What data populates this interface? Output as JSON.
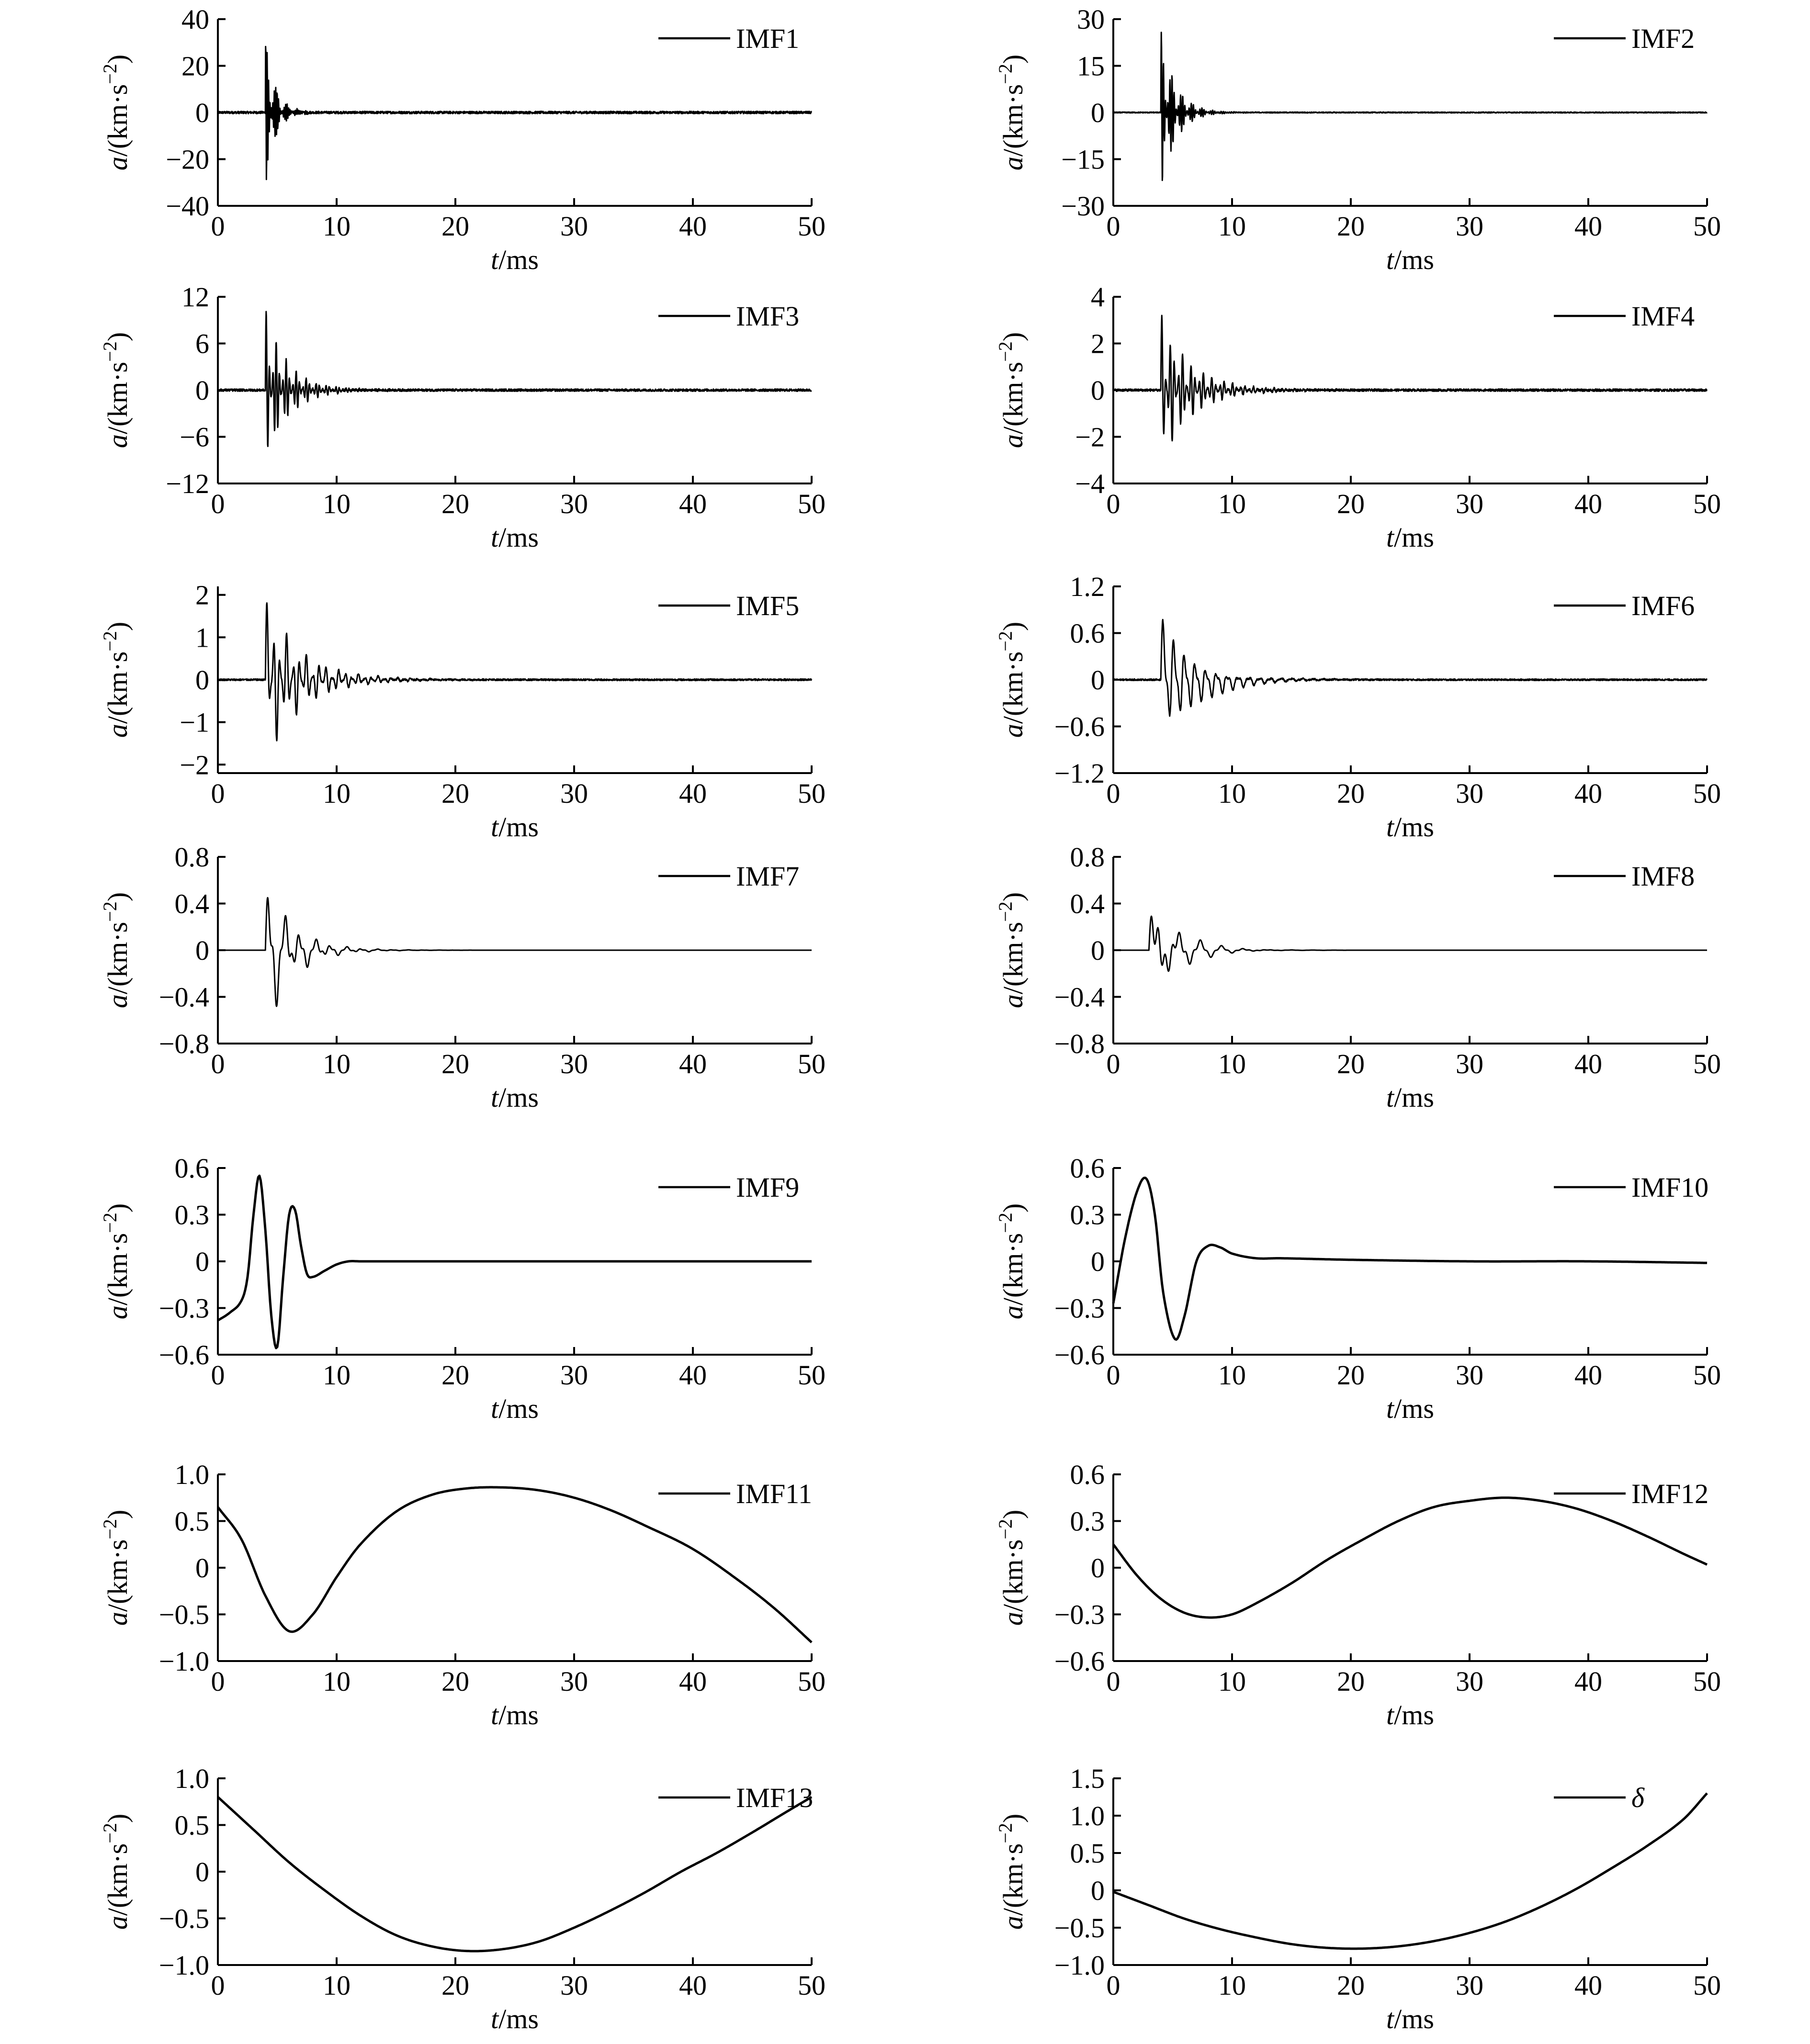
{
  "chart_data": [
    {
      "type": "line",
      "legend": "IMF1",
      "xlabel_italic": "t",
      "xlabel_unit": "/ms",
      "ylabel_italic": "a",
      "ylabel_unit": "/(km·s",
      "ylabel_sup": "−2",
      "ylabel_close": ")",
      "xlim": [
        0,
        50
      ],
      "ylim": [
        -40,
        40
      ],
      "xticks": [
        "0",
        "10",
        "20",
        "30",
        "40",
        "50"
      ],
      "yticks": [
        "−40",
        "−20",
        "0",
        "20",
        "40"
      ],
      "ytick_values": [
        -40,
        -20,
        0,
        20,
        40
      ],
      "signal": {
        "kind": "burst",
        "t0": 4.0,
        "amp": 34,
        "decay": 0.8,
        "period": 0.12,
        "noise": 0.5
      }
    },
    {
      "type": "line",
      "legend": "IMF2",
      "xlabel_italic": "t",
      "xlabel_unit": "/ms",
      "ylabel_italic": "a",
      "ylabel_unit": "/(km·s",
      "ylabel_sup": "−2",
      "ylabel_close": ")",
      "xlim": [
        0,
        50
      ],
      "ylim": [
        -30,
        30
      ],
      "xticks": [
        "0",
        "10",
        "20",
        "30",
        "40",
        "50"
      ],
      "yticks": [
        "−30",
        "−15",
        "0",
        "15",
        "30"
      ],
      "ytick_values": [
        -30,
        -15,
        0,
        15,
        30
      ],
      "signal": {
        "kind": "burst",
        "t0": 4.0,
        "amp": 27,
        "decay": 1.2,
        "period": 0.18,
        "noise": 0.15
      }
    },
    {
      "type": "line",
      "legend": "IMF3",
      "xlabel_italic": "t",
      "xlabel_unit": "/ms",
      "ylabel_italic": "a",
      "ylabel_unit": "/(km·s",
      "ylabel_sup": "−2",
      "ylabel_close": ")",
      "xlim": [
        0,
        50
      ],
      "ylim": [
        -12,
        12
      ],
      "xticks": [
        "0",
        "10",
        "20",
        "30",
        "40",
        "50"
      ],
      "yticks": [
        "−12",
        "−6",
        "0",
        "6",
        "12"
      ],
      "ytick_values": [
        -12,
        -6,
        0,
        6,
        12
      ],
      "signal": {
        "kind": "burst",
        "t0": 4.0,
        "amp": 10.5,
        "decay": 1.8,
        "period": 0.28,
        "noise": 0.15
      }
    },
    {
      "type": "line",
      "legend": "IMF4",
      "xlabel_italic": "t",
      "xlabel_unit": "/ms",
      "ylabel_italic": "a",
      "ylabel_unit": "/(km·s",
      "ylabel_sup": "−2",
      "ylabel_close": ")",
      "xlim": [
        0,
        50
      ],
      "ylim": [
        -4,
        4
      ],
      "xticks": [
        "0",
        "10",
        "20",
        "30",
        "40",
        "50"
      ],
      "yticks": [
        "−4",
        "−2",
        "0",
        "2",
        "4"
      ],
      "ytick_values": [
        -4,
        -2,
        0,
        2,
        4
      ],
      "signal": {
        "kind": "burst",
        "t0": 4.0,
        "amp": 3.3,
        "decay": 2.5,
        "period": 0.35,
        "noise": 0.05
      }
    },
    {
      "type": "line",
      "legend": "IMF5",
      "xlabel_italic": "t",
      "xlabel_unit": "/ms",
      "ylabel_italic": "a",
      "ylabel_unit": "/(km·s",
      "ylabel_sup": "−2",
      "ylabel_close": ")",
      "xlim": [
        0,
        50
      ],
      "ylim": [
        -2.2,
        2.2
      ],
      "xticks": [
        "0",
        "10",
        "20",
        "30",
        "40",
        "50"
      ],
      "yticks": [
        "−2",
        "−1",
        "0",
        "1",
        "2"
      ],
      "ytick_values": [
        -2,
        -1,
        0,
        1,
        2
      ],
      "signal": {
        "kind": "burst",
        "t0": 4.0,
        "amp": 2.0,
        "decay": 3.0,
        "period": 0.55,
        "noise": 0.02
      }
    },
    {
      "type": "line",
      "legend": "IMF6",
      "xlabel_italic": "t",
      "xlabel_unit": "/ms",
      "ylabel_italic": "a",
      "ylabel_unit": "/(km·s",
      "ylabel_sup": "−2",
      "ylabel_close": ")",
      "xlim": [
        0,
        50
      ],
      "ylim": [
        -1.2,
        1.2
      ],
      "xticks": [
        "0",
        "10",
        "20",
        "30",
        "40",
        "50"
      ],
      "yticks": [
        "−1.2",
        "−0.6",
        "0",
        "0.6",
        "1.2"
      ],
      "ytick_values": [
        -1.2,
        -0.6,
        0,
        0.6,
        1.2
      ],
      "signal": {
        "kind": "burst",
        "t0": 4.0,
        "amp": 1.0,
        "decay": 3.0,
        "period": 0.9,
        "noise": 0.01
      }
    },
    {
      "type": "line",
      "legend": "IMF7",
      "xlabel_italic": "t",
      "xlabel_unit": "/ms",
      "ylabel_italic": "a",
      "ylabel_unit": "/(km·s",
      "ylabel_sup": "−2",
      "ylabel_close": ")",
      "xlim": [
        0,
        50
      ],
      "ylim": [
        -0.8,
        0.8
      ],
      "xticks": [
        "0",
        "10",
        "20",
        "30",
        "40",
        "50"
      ],
      "yticks": [
        "−0.8",
        "−0.4",
        "0",
        "0.4",
        "0.8"
      ],
      "ytick_values": [
        -0.8,
        -0.4,
        0,
        0.4,
        0.8
      ],
      "signal": {
        "kind": "burst",
        "t0": 4.0,
        "amp": 0.75,
        "decay": 2.2,
        "period": 1.3,
        "noise": 0.0
      }
    },
    {
      "type": "line",
      "legend": "IMF8",
      "xlabel_italic": "t",
      "xlabel_unit": "/ms",
      "ylabel_italic": "a",
      "ylabel_unit": "/(km·s",
      "ylabel_sup": "−2",
      "ylabel_close": ")",
      "xlim": [
        0,
        50
      ],
      "ylim": [
        -0.8,
        0.8
      ],
      "xticks": [
        "0",
        "10",
        "20",
        "30",
        "40",
        "50"
      ],
      "yticks": [
        "−0.8",
        "−0.4",
        "0",
        "0.4",
        "0.8"
      ],
      "ytick_values": [
        -0.8,
        -0.4,
        0,
        0.4,
        0.8
      ],
      "signal": {
        "kind": "burst",
        "t0": 3.0,
        "amp": 0.65,
        "decay": 2.2,
        "period": 1.9,
        "noise": 0.0
      }
    },
    {
      "type": "line",
      "legend": "IMF9",
      "xlabel_italic": "t",
      "xlabel_unit": "/ms",
      "ylabel_italic": "a",
      "ylabel_unit": "/(km·s",
      "ylabel_sup": "−2",
      "ylabel_close": ")",
      "xlim": [
        0,
        50
      ],
      "ylim": [
        -0.6,
        0.6
      ],
      "xticks": [
        "0",
        "10",
        "20",
        "30",
        "40",
        "50"
      ],
      "yticks": [
        "−0.6",
        "−0.3",
        "0",
        "0.3",
        "0.6"
      ],
      "ytick_values": [
        -0.6,
        -0.3,
        0,
        0.3,
        0.6
      ],
      "signal": {
        "kind": "points",
        "x": [
          0,
          1,
          2,
          2.5,
          3,
          3.5,
          4,
          4.5,
          5,
          5.5,
          6,
          6.5,
          7,
          7.5,
          8,
          9,
          10,
          11,
          12,
          50
        ],
        "y": [
          -0.38,
          -0.33,
          -0.25,
          -0.1,
          0.3,
          0.55,
          0.2,
          -0.35,
          -0.55,
          -0.1,
          0.3,
          0.33,
          0.1,
          -0.08,
          -0.1,
          -0.06,
          -0.02,
          0.0,
          0.0,
          0.0
        ]
      }
    },
    {
      "type": "line",
      "legend": "IMF10",
      "xlabel_italic": "t",
      "xlabel_unit": "/ms",
      "ylabel_italic": "a",
      "ylabel_unit": "/(km·s",
      "ylabel_sup": "−2",
      "ylabel_close": ")",
      "xlim": [
        0,
        50
      ],
      "ylim": [
        -0.6,
        0.6
      ],
      "xticks": [
        "0",
        "10",
        "20",
        "30",
        "40",
        "50"
      ],
      "yticks": [
        "−0.6",
        "−0.3",
        "0",
        "0.3",
        "0.6"
      ],
      "ytick_values": [
        -0.6,
        -0.3,
        0,
        0.3,
        0.6
      ],
      "signal": {
        "kind": "points",
        "x": [
          0,
          1,
          2,
          2.8,
          3.5,
          4.2,
          5.2,
          6,
          7,
          8,
          9,
          10,
          12,
          14,
          20,
          30,
          40,
          50
        ],
        "y": [
          -0.27,
          0.15,
          0.45,
          0.53,
          0.3,
          -0.2,
          -0.5,
          -0.35,
          0.0,
          0.1,
          0.09,
          0.05,
          0.02,
          0.02,
          0.01,
          0.0,
          0.0,
          -0.01
        ]
      }
    },
    {
      "type": "line",
      "legend": "IMF11",
      "xlabel_italic": "t",
      "xlabel_unit": "/ms",
      "ylabel_italic": "a",
      "ylabel_unit": "/(km·s",
      "ylabel_sup": "−2",
      "ylabel_close": ")",
      "xlim": [
        0,
        50
      ],
      "ylim": [
        -1.0,
        1.0
      ],
      "xticks": [
        "0",
        "10",
        "20",
        "30",
        "40",
        "50"
      ],
      "yticks": [
        "−1.0",
        "−0.5",
        "0",
        "0.5",
        "1.0"
      ],
      "ytick_values": [
        -1.0,
        -0.5,
        0,
        0.5,
        1.0
      ],
      "signal": {
        "kind": "points",
        "x": [
          0,
          2,
          4,
          6,
          8,
          10,
          12,
          15,
          18,
          21,
          24,
          27,
          30,
          33,
          36,
          40,
          44,
          47,
          50
        ],
        "y": [
          0.65,
          0.3,
          -0.3,
          -0.68,
          -0.5,
          -0.1,
          0.25,
          0.6,
          0.78,
          0.85,
          0.86,
          0.83,
          0.75,
          0.62,
          0.45,
          0.2,
          -0.15,
          -0.45,
          -0.8
        ]
      }
    },
    {
      "type": "line",
      "legend": "IMF12",
      "xlabel_italic": "t",
      "xlabel_unit": "/ms",
      "ylabel_italic": "a",
      "ylabel_unit": "/(km·s",
      "ylabel_sup": "−2",
      "ylabel_close": ")",
      "xlim": [
        0,
        50
      ],
      "ylim": [
        -0.6,
        0.6
      ],
      "xticks": [
        "0",
        "10",
        "20",
        "30",
        "40",
        "50"
      ],
      "yticks": [
        "−0.6",
        "−0.3",
        "0",
        "0.3",
        "0.6"
      ],
      "ytick_values": [
        -0.6,
        -0.3,
        0,
        0.3,
        0.6
      ],
      "signal": {
        "kind": "points",
        "x": [
          0,
          2,
          4,
          6,
          8,
          10,
          12,
          15,
          18,
          21,
          24,
          27,
          30,
          33,
          36,
          39,
          42,
          45,
          48,
          50
        ],
        "y": [
          0.15,
          -0.05,
          -0.2,
          -0.29,
          -0.32,
          -0.3,
          -0.23,
          -0.1,
          0.05,
          0.18,
          0.3,
          0.39,
          0.43,
          0.45,
          0.43,
          0.38,
          0.3,
          0.2,
          0.09,
          0.02
        ]
      }
    },
    {
      "type": "line",
      "legend": "IMF13",
      "xlabel_italic": "t",
      "xlabel_unit": "/ms",
      "ylabel_italic": "a",
      "ylabel_unit": "/(km·s",
      "ylabel_sup": "−2",
      "ylabel_close": ")",
      "xlim": [
        0,
        50
      ],
      "ylim": [
        -1.0,
        1.0
      ],
      "xticks": [
        "0",
        "10",
        "20",
        "30",
        "40",
        "50"
      ],
      "yticks": [
        "−1.0",
        "−0.5",
        "0",
        "0.5",
        "1.0"
      ],
      "ytick_values": [
        -1.0,
        -0.5,
        0,
        0.5,
        1.0
      ],
      "signal": {
        "kind": "points",
        "x": [
          0,
          3,
          6,
          9,
          12,
          15,
          18,
          21,
          24,
          27,
          30,
          33,
          36,
          39,
          42,
          45,
          48,
          50
        ],
        "y": [
          0.8,
          0.45,
          0.1,
          -0.2,
          -0.47,
          -0.68,
          -0.8,
          -0.85,
          -0.83,
          -0.75,
          -0.6,
          -0.42,
          -0.22,
          0.0,
          0.2,
          0.42,
          0.65,
          0.8
        ]
      }
    },
    {
      "type": "line",
      "legend": "δ",
      "legend_italic": true,
      "xlabel_italic": "t",
      "xlabel_unit": "/ms",
      "ylabel_italic": "a",
      "ylabel_unit": "/(km·s",
      "ylabel_sup": "−2",
      "ylabel_close": ")",
      "xlim": [
        0,
        50
      ],
      "ylim": [
        -1.0,
        1.5
      ],
      "xticks": [
        "0",
        "10",
        "20",
        "30",
        "40",
        "50"
      ],
      "yticks": [
        "−1.0",
        "−0.5",
        "0",
        "0.5",
        "1.0",
        "1.5"
      ],
      "ytick_values": [
        -1.0,
        -0.5,
        0,
        0.5,
        1.0,
        1.5
      ],
      "signal": {
        "kind": "points",
        "x": [
          0,
          3,
          6,
          9,
          12,
          15,
          18,
          21,
          24,
          27,
          30,
          33,
          36,
          39,
          42,
          45,
          48,
          50
        ],
        "y": [
          -0.02,
          -0.2,
          -0.38,
          -0.52,
          -0.63,
          -0.72,
          -0.77,
          -0.78,
          -0.75,
          -0.68,
          -0.57,
          -0.42,
          -0.22,
          0.02,
          0.3,
          0.6,
          0.95,
          1.3
        ]
      }
    }
  ]
}
